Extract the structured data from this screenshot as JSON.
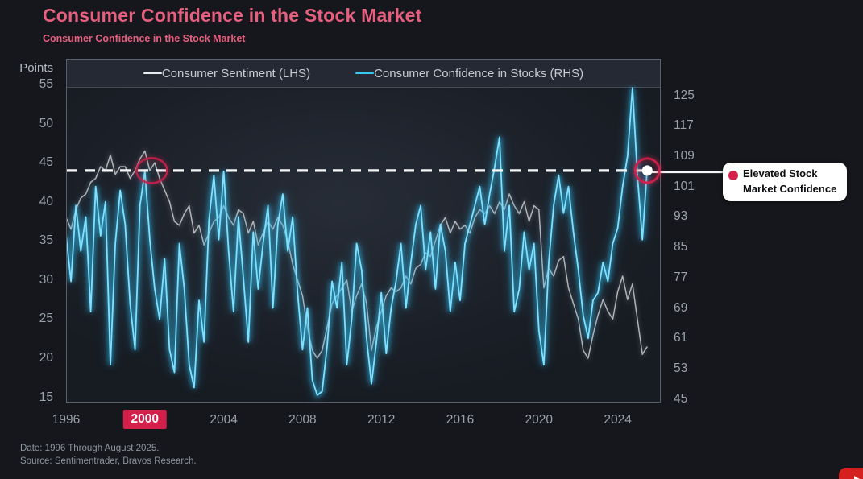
{
  "header": {
    "title": "Consumer Confidence in the Stock Market",
    "subtitle": "Consumer Confidence in the Stock Market"
  },
  "legend": [
    {
      "label": "Consumer Sentiment (LHS)",
      "color": "#e9ebee"
    },
    {
      "label": "Consumer Confidence in Stocks (RHS)",
      "color": "#38c6f4"
    }
  ],
  "footer": {
    "date_line": "Date: 1996 Through August 2025.",
    "source_line": "Source: Sentimentrader, Bravos Research."
  },
  "callout": {
    "line1": "Elevated Stock",
    "line2": "Market Confidence",
    "dot_color": "#d2204b"
  },
  "colors": {
    "title_pink": "#e5607e",
    "accent_crimson": "#d2204b",
    "cyan_line": "#3ec9f5",
    "gray_line": "#b6bbc1",
    "dashed_reference": "#f5f6f7",
    "axis_text": "#9ba1a9",
    "background": "#15171c"
  },
  "chart_data": {
    "type": "line",
    "title": "Consumer Confidence in the Stock Market",
    "left_axis": {
      "label": "Points",
      "ticks": [
        55,
        50,
        45,
        40,
        35,
        30,
        25,
        20,
        15
      ],
      "range": [
        14,
        56
      ]
    },
    "right_axis": {
      "ticks": [
        125,
        117,
        109,
        101,
        93,
        85,
        77,
        69,
        61,
        53,
        45
      ],
      "range": [
        44,
        128
      ]
    },
    "x_axis": {
      "ticks": [
        1996,
        2000,
        2004,
        2008,
        2012,
        2016,
        2020,
        2024
      ],
      "highlighted_tick": 2000,
      "range": [
        1996,
        2026
      ]
    },
    "grid": "off",
    "legend_position": "top",
    "reference_line": {
      "value_lhs": 44,
      "value_rhs": 106,
      "style": "dashed",
      "color": "#ffffff"
    },
    "annotations": {
      "circled_peak_year": 2000.35,
      "endpoint_label": "Elevated Stock Market Confidence"
    },
    "x_start": 1996,
    "x_step": 0.25,
    "series": [
      {
        "name": "Consumer Sentiment (LHS)",
        "axis": "left",
        "color": "#b6bbc1",
        "values": [
          38,
          36.5,
          39,
          40.5,
          41,
          42.5,
          43,
          44.5,
          44,
          46,
          43.5,
          44.5,
          44.5,
          43,
          44,
          45.5,
          46.5,
          44,
          45,
          43,
          41.5,
          40,
          37.5,
          37,
          38.5,
          39.5,
          36,
          37,
          34.5,
          36,
          37.5,
          38,
          39.5,
          38,
          37,
          39,
          38.5,
          36,
          37.5,
          34.5,
          36,
          37.5,
          36.5,
          38,
          37,
          35,
          32,
          30,
          28,
          24,
          21,
          20,
          21,
          24,
          27,
          28,
          29,
          30,
          26,
          28,
          29.5,
          27,
          21,
          24,
          26,
          28,
          29,
          28.5,
          29,
          30.5,
          29.5,
          31.5,
          32,
          33.5,
          33,
          35,
          37,
          38,
          36,
          37.5,
          36.5,
          37,
          36,
          38,
          39,
          38.5,
          39.5,
          38.5,
          40,
          39,
          41,
          39.5,
          38.5,
          40,
          37.5,
          39.5,
          39,
          29,
          31.5,
          30.5,
          32.5,
          33,
          29,
          27,
          25,
          21,
          20,
          23,
          25.5,
          27.5,
          26,
          25,
          28.5,
          30.5,
          27.5,
          29.5,
          25,
          20.5,
          21.5
        ]
      },
      {
        "name": "Consumer Confidence in Stocks (RHS)",
        "axis": "right",
        "color": "#3ec9f5",
        "values": [
          88,
          76,
          96,
          84,
          93,
          68,
          101,
          88,
          97,
          54,
          86,
          100,
          91,
          70,
          58,
          96,
          105,
          87,
          74,
          66,
          82,
          58,
          52,
          86,
          74,
          54,
          48,
          71,
          60,
          92,
          104,
          87,
          105,
          84,
          68,
          93,
          77,
          60,
          89,
          74,
          86,
          96,
          69,
          91,
          99,
          84,
          93,
          73,
          58,
          69,
          50,
          46,
          47,
          59,
          76,
          69,
          81,
          54,
          66,
          86,
          79,
          61,
          49,
          60,
          73,
          57,
          69,
          76,
          86,
          69,
          81,
          91,
          96,
          79,
          89,
          74,
          91,
          84,
          68,
          81,
          71,
          86,
          91,
          96,
          101,
          91,
          99,
          106,
          114,
          84,
          96,
          68,
          74,
          89,
          79,
          86,
          63,
          54,
          81,
          96,
          104,
          94,
          101,
          89,
          79,
          67,
          61,
          71,
          73,
          81,
          76,
          86,
          90,
          101,
          109,
          127,
          104,
          87,
          106
        ]
      }
    ]
  }
}
